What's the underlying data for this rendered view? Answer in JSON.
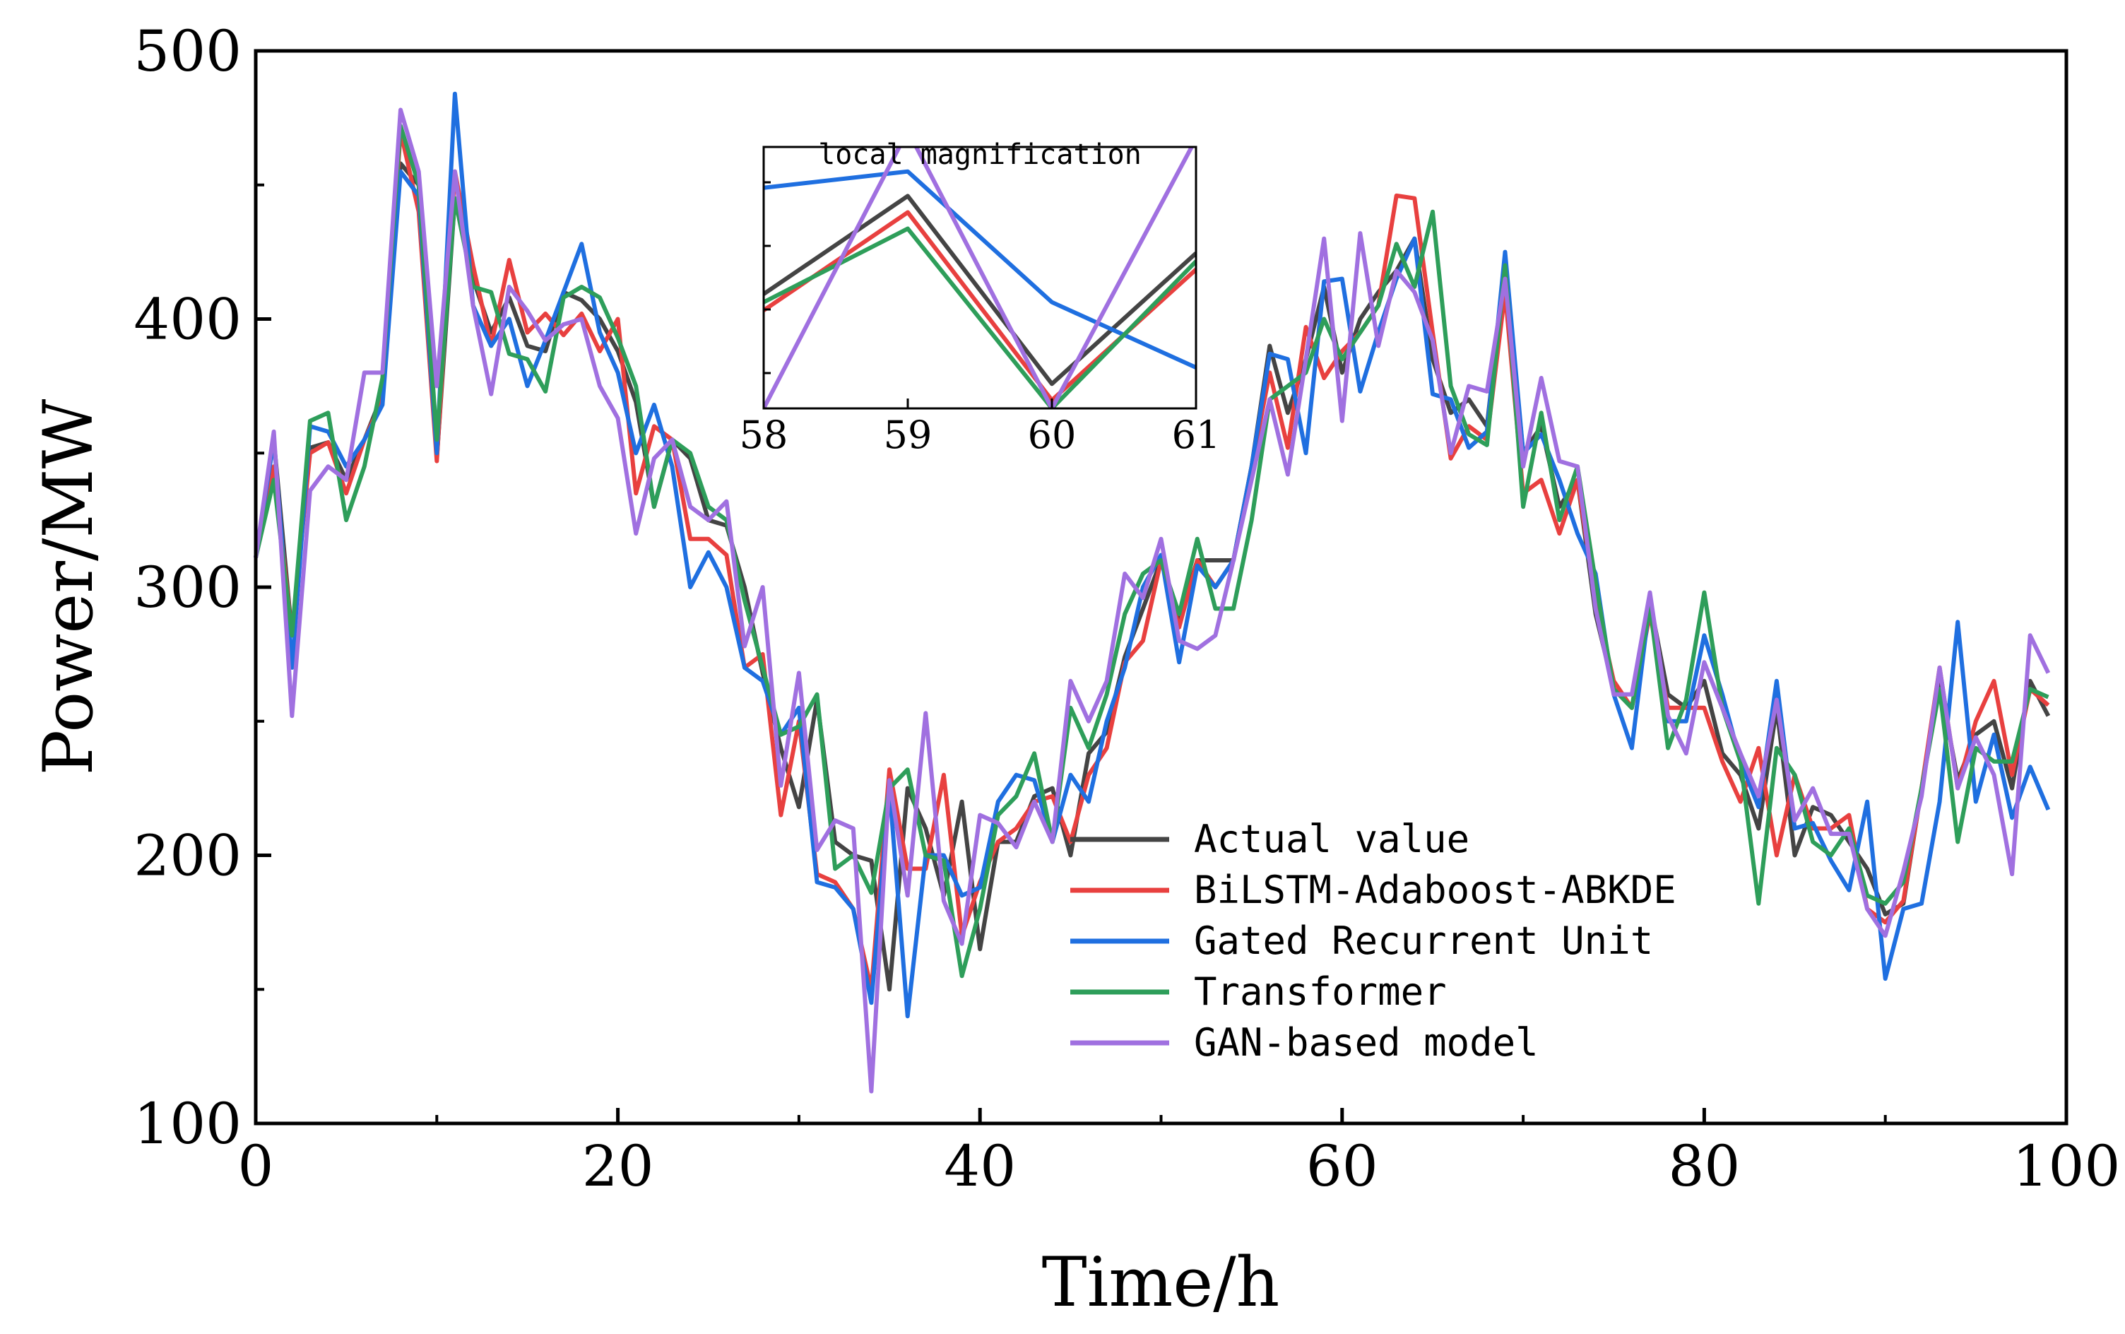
{
  "chart_data": {
    "type": "line",
    "xlabel": "Time/h",
    "ylabel": "Power/MW",
    "xlim": [
      0,
      100
    ],
    "ylim": [
      100,
      500
    ],
    "xticks": [
      0,
      20,
      40,
      60,
      80,
      100
    ],
    "yticks": [
      100,
      200,
      300,
      400,
      500
    ],
    "grid": false,
    "legend_position": "lower-middle",
    "series": [
      {
        "name": "Actual value",
        "color": "#444444",
        "values": [
          311,
          355,
          282,
          352,
          354,
          340,
          355,
          372,
          458,
          450,
          348,
          445,
          415,
          395,
          408,
          390,
          388,
          410,
          407,
          400,
          388,
          369,
          330,
          355,
          348,
          325,
          323,
          300,
          268,
          240,
          218,
          258,
          205,
          200,
          198,
          150,
          225,
          210,
          185,
          220,
          165,
          205,
          205,
          222,
          225,
          200,
          238,
          246,
          274,
          292,
          310,
          288,
          310,
          310,
          310,
          345,
          390,
          365,
          385,
          412,
          380,
          400,
          410,
          418,
          430,
          385,
          365,
          370,
          360,
          420,
          350,
          360,
          330,
          340,
          290,
          262,
          255,
          295,
          260,
          255,
          265,
          238,
          230,
          210,
          255,
          200,
          218,
          215,
          205,
          195,
          178,
          182,
          225,
          265,
          228,
          245,
          250,
          225,
          265,
          252
        ]
      },
      {
        "name": "BiLSTM-Adaboost-ABKDE",
        "color": "#e8403f",
        "values": [
          311,
          345,
          282,
          350,
          354,
          335,
          355,
          370,
          470,
          440,
          347,
          455,
          420,
          390,
          422,
          395,
          402,
          394,
          402,
          388,
          400,
          335,
          360,
          355,
          318,
          318,
          312,
          270,
          275,
          215,
          250,
          193,
          190,
          180,
          150,
          232,
          195,
          195,
          230,
          170,
          190,
          205,
          210,
          220,
          222,
          205,
          230,
          240,
          272,
          280,
          310,
          285,
          310,
          300,
          310,
          345,
          380,
          352,
          397,
          378,
          388,
          395,
          405,
          446,
          445,
          395,
          348,
          360,
          355,
          410,
          335,
          340,
          320,
          340,
          295,
          265,
          255,
          290,
          255,
          255,
          255,
          235,
          220,
          240,
          200,
          230,
          210,
          210,
          215,
          180,
          175,
          183,
          225,
          270,
          225,
          250,
          265,
          230,
          262,
          256
        ]
      },
      {
        "name": "Gated Recurrent Unit",
        "color": "#1f6fe0",
        "values": [
          311,
          355,
          270,
          360,
          358,
          345,
          355,
          368,
          455,
          446,
          350,
          484,
          405,
          390,
          400,
          375,
          392,
          410,
          428,
          395,
          380,
          350,
          368,
          345,
          300,
          313,
          300,
          270,
          265,
          245,
          255,
          190,
          188,
          180,
          145,
          225,
          140,
          200,
          200,
          185,
          188,
          220,
          230,
          228,
          205,
          230,
          220,
          250,
          270,
          300,
          312,
          272,
          308,
          300,
          310,
          345,
          387,
          385,
          350,
          414,
          415,
          373,
          395,
          415,
          430,
          372,
          370,
          352,
          358,
          425,
          350,
          357,
          340,
          320,
          305,
          260,
          240,
          295,
          250,
          250,
          282,
          260,
          235,
          218,
          265,
          210,
          212,
          198,
          187,
          220,
          154,
          180,
          182,
          220,
          287,
          220,
          245,
          214,
          233,
          217
        ]
      },
      {
        "name": "Transformer",
        "color": "#2e9e5a",
        "values": [
          311,
          340,
          282,
          362,
          365,
          325,
          345,
          378,
          472,
          450,
          355,
          445,
          412,
          410,
          387,
          385,
          373,
          408,
          412,
          408,
          393,
          375,
          330,
          355,
          350,
          330,
          325,
          295,
          270,
          245,
          248,
          260,
          195,
          200,
          186,
          225,
          232,
          200,
          198,
          155,
          180,
          215,
          222,
          238,
          205,
          255,
          240,
          260,
          290,
          305,
          310,
          290,
          318,
          292,
          292,
          325,
          370,
          375,
          380,
          400,
          385,
          395,
          405,
          428,
          412,
          440,
          375,
          357,
          353,
          420,
          330,
          365,
          325,
          345,
          302,
          262,
          255,
          293,
          240,
          258,
          298,
          255,
          235,
          182,
          240,
          230,
          205,
          200,
          210,
          185,
          182,
          190,
          225,
          262,
          205,
          240,
          235,
          235,
          262,
          259
        ]
      },
      {
        "name": "GAN-based model",
        "color": "#a070e0",
        "values": [
          311,
          358,
          252,
          336,
          345,
          340,
          380,
          380,
          478,
          455,
          375,
          455,
          405,
          372,
          412,
          403,
          392,
          398,
          400,
          375,
          363,
          320,
          348,
          355,
          330,
          325,
          332,
          278,
          300,
          226,
          268,
          202,
          213,
          210,
          112,
          228,
          185,
          253,
          183,
          167,
          215,
          212,
          203,
          220,
          205,
          265,
          250,
          265,
          305,
          296,
          318,
          280,
          277,
          282,
          310,
          340,
          370,
          342,
          385,
          430,
          362,
          432,
          390,
          418,
          410,
          392,
          350,
          375,
          373,
          415,
          345,
          378,
          347,
          345,
          292,
          260,
          260,
          298,
          252,
          238,
          272,
          255,
          238,
          222,
          258,
          213,
          225,
          208,
          208,
          180,
          170,
          194,
          222,
          270,
          225,
          244,
          230,
          193,
          282,
          268
        ]
      }
    ],
    "inset": {
      "title": "local magnification",
      "xlim": [
        58,
        61
      ],
      "xticks": [
        58,
        59,
        60,
        61
      ],
      "ylim": [
        372,
        404
      ],
      "series_values": {
        "Actual value": [
          386,
          398,
          375,
          391
        ],
        "BiLSTM-Adaboost-ABKDE": [
          384,
          396,
          373,
          389
        ],
        "Gated Recurrent Unit": [
          399,
          401,
          385,
          377
        ],
        "Transformer": [
          385,
          394,
          372,
          390
        ],
        "GAN-based model": [
          372,
          406,
          372,
          405
        ]
      }
    }
  }
}
